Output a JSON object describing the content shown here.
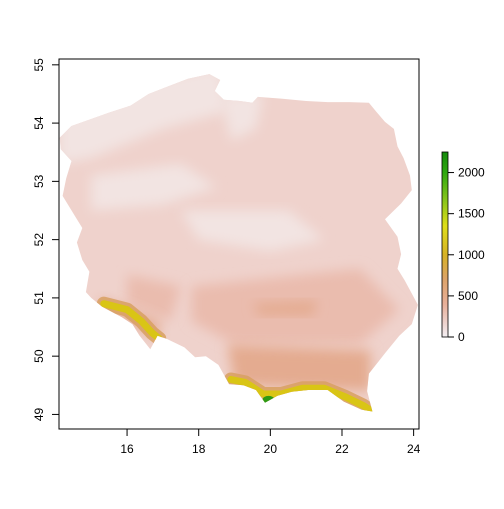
{
  "map": {
    "x_axis": {
      "min": 14.1,
      "max": 24.15,
      "ticks": [
        16,
        18,
        20,
        22,
        24
      ],
      "tick_labels": [
        "16",
        "18",
        "20",
        "22",
        "24"
      ]
    },
    "y_axis": {
      "min": 48.75,
      "max": 55.1,
      "ticks": [
        49,
        50,
        51,
        52,
        53,
        54,
        55
      ],
      "tick_labels": [
        "49",
        "50",
        "51",
        "52",
        "53",
        "54",
        "55"
      ]
    },
    "legend": {
      "placement": "right",
      "min": 0,
      "max": 2250,
      "ticks": [
        0,
        500,
        1000,
        1500,
        2000
      ],
      "tick_labels": [
        "0",
        "500",
        "1000",
        "1500",
        "2000"
      ],
      "color_stops": [
        {
          "value": 0,
          "color": "#f4f0f4"
        },
        {
          "value": 150,
          "color": "#eed6d2"
        },
        {
          "value": 400,
          "color": "#e8b09a"
        },
        {
          "value": 700,
          "color": "#dca36a"
        },
        {
          "value": 1000,
          "color": "#d7b225"
        },
        {
          "value": 1350,
          "color": "#dede1a"
        },
        {
          "value": 1700,
          "color": "#7ec21a"
        },
        {
          "value": 2000,
          "color": "#2ea80f"
        },
        {
          "value": 2250,
          "color": "#148a0c"
        }
      ]
    },
    "colors": {
      "lowland": "#f2e4e2",
      "plain": "#efd2cc",
      "upland": "#eabcae",
      "high_upland": "#e4ab90",
      "foothill": "#d8a060",
      "mountain": "#d9c515",
      "peak": "#2e9a12",
      "frame": "#000000"
    }
  }
}
